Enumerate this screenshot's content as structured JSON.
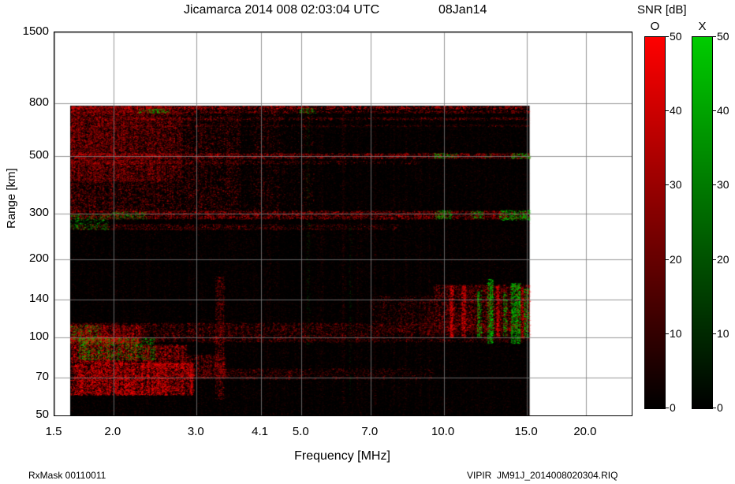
{
  "header": {
    "title": "Jicamarca 2014 008 02:03:04 UTC",
    "date": "08Jan14"
  },
  "footer": {
    "left": "RxMask 00110011",
    "right": "VIPIR  JM91J_2014008020304.RIQ"
  },
  "colorbar": {
    "title": "SNR [dB]",
    "o_label": "O",
    "x_label": "X",
    "min": 0,
    "max": 50,
    "ticks": [
      50,
      40,
      30,
      20,
      10,
      0
    ],
    "o_color": "#ff0000",
    "x_color": "#00cc00"
  },
  "chart_data": {
    "type": "heatmap",
    "title": "Jicamarca 2014 008 02:03:04 UTC 08Jan14",
    "xlabel": "Frequency [MHz]",
    "ylabel": "Range [km]",
    "x_scale": "log",
    "y_scale": "log",
    "x_range": [
      1.5,
      25
    ],
    "y_range": [
      50,
      1500
    ],
    "grid": true,
    "grid_color": "#7d7d7d",
    "x_ticks": [
      {
        "value": 1.5,
        "label": "1.5"
      },
      {
        "value": 2.0,
        "label": "2.0"
      },
      {
        "value": 3.0,
        "label": "3.0"
      },
      {
        "value": 4.1,
        "label": "4.1"
      },
      {
        "value": 5.0,
        "label": "5.0"
      },
      {
        "value": 7.0,
        "label": "7.0"
      },
      {
        "value": 10.0,
        "label": "10.0"
      },
      {
        "value": 15.0,
        "label": "15.0"
      },
      {
        "value": 20.0,
        "label": "20.0"
      }
    ],
    "y_ticks": [
      {
        "value": 1500,
        "label": "1500"
      },
      {
        "value": 800,
        "label": "800"
      },
      {
        "value": 500,
        "label": "500"
      },
      {
        "value": 300,
        "label": "300"
      },
      {
        "value": 200,
        "label": "200"
      },
      {
        "value": 140,
        "label": "140"
      },
      {
        "value": 100,
        "label": "100"
      },
      {
        "value": 70,
        "label": "70"
      },
      {
        "value": 50,
        "label": "50"
      }
    ],
    "snr_scale_db": [
      0,
      50
    ],
    "polarizations": {
      "O": "#ff0000",
      "X": "#00cc00"
    },
    "data_extent": {
      "freq": [
        1.62,
        15.2
      ],
      "range": [
        50,
        782
      ]
    },
    "background": {
      "bg_color": "#000000",
      "speckle_color": "#ff0000",
      "speckle_density": 0.3,
      "speckle_alpha": 0.1
    },
    "features": [
      {
        "name": "f-region-diffuse-echo",
        "type": "band",
        "f": [
          1.62,
          5.3
        ],
        "km": [
          305,
          780
        ],
        "color": "#ff0000",
        "alpha": 0.45,
        "density": 0.55,
        "fade": [
          1,
          0.12
        ]
      },
      {
        "name": "f-region-strong-left",
        "type": "band",
        "f": [
          1.62,
          2.8
        ],
        "km": [
          400,
          780
        ],
        "color": "#ff0000",
        "alpha": 0.5,
        "density": 0.6,
        "fade": [
          1,
          0.55
        ]
      },
      {
        "name": "gap-3p8mhz",
        "type": "dark",
        "f": [
          3.72,
          3.97
        ],
        "km": [
          305,
          780
        ],
        "alpha": 0.5
      },
      {
        "name": "gap-4p7mhz",
        "type": "dark",
        "f": [
          4.5,
          4.97
        ],
        "km": [
          140,
          780
        ],
        "alpha": 0.45
      },
      {
        "name": "band-775km",
        "type": "band",
        "f": [
          1.62,
          15.2
        ],
        "km": [
          760,
          782
        ],
        "color": "#ff0000",
        "alpha": 0.7,
        "density": 0.75,
        "fade": [
          1,
          0.7
        ]
      },
      {
        "name": "band-745km",
        "type": "band",
        "f": [
          1.62,
          15.2
        ],
        "km": [
          733,
          752
        ],
        "color": "#ff0000",
        "alpha": 0.5,
        "density": 0.55
      },
      {
        "name": "green-745km-2p4",
        "type": "band",
        "f": [
          2.25,
          2.62
        ],
        "km": [
          735,
          762
        ],
        "color": "#00cc00",
        "alpha": 0.8,
        "density": 0.5
      },
      {
        "name": "green-745km-5p1",
        "type": "band",
        "f": [
          4.95,
          5.35
        ],
        "km": [
          733,
          768
        ],
        "color": "#00cc00",
        "alpha": 0.8,
        "density": 0.5
      },
      {
        "name": "band-700km",
        "type": "band",
        "f": [
          1.62,
          15.2
        ],
        "km": [
          690,
          706
        ],
        "color": "#ff0000",
        "alpha": 0.42,
        "density": 0.5
      },
      {
        "name": "band-658km",
        "type": "band",
        "f": [
          1.62,
          15.2
        ],
        "km": [
          650,
          662
        ],
        "color": "#ff0000",
        "alpha": 0.3,
        "density": 0.4
      },
      {
        "name": "band-505km",
        "type": "band",
        "f": [
          1.62,
          15.2
        ],
        "km": [
          490,
          514
        ],
        "color": "#ff0000",
        "alpha": 0.62,
        "density": 0.65
      },
      {
        "name": "band-475km",
        "type": "band",
        "f": [
          1.62,
          9.0
        ],
        "km": [
          466,
          482
        ],
        "color": "#ff0000",
        "alpha": 0.42,
        "density": 0.5,
        "fade": [
          1,
          0.35
        ]
      },
      {
        "name": "green-505km-10",
        "type": "band",
        "f": [
          9.55,
          10.65
        ],
        "km": [
          492,
          514
        ],
        "color": "#00cc00",
        "alpha": 0.85,
        "density": 0.55
      },
      {
        "name": "green-505km-12p4",
        "type": "band",
        "f": [
          12.2,
          12.65
        ],
        "km": [
          494,
          510
        ],
        "color": "#00cc00",
        "alpha": 0.7,
        "density": 0.45
      },
      {
        "name": "green-505km-14p5",
        "type": "band",
        "f": [
          13.9,
          15.2
        ],
        "km": [
          490,
          514
        ],
        "color": "#00cc00",
        "alpha": 0.85,
        "density": 0.6
      },
      {
        "name": "band-298km",
        "type": "band",
        "f": [
          1.62,
          15.2
        ],
        "km": [
          286,
          308
        ],
        "color": "#ff0000",
        "alpha": 0.6,
        "density": 0.62
      },
      {
        "name": "band-268km",
        "type": "band",
        "f": [
          1.62,
          8.0
        ],
        "km": [
          260,
          274
        ],
        "color": "#ff0000",
        "alpha": 0.45,
        "density": 0.5,
        "fade": [
          1,
          0.45
        ]
      },
      {
        "name": "green-298km-2p1",
        "type": "band",
        "f": [
          1.95,
          2.35
        ],
        "km": [
          286,
          306
        ],
        "color": "#00cc00",
        "alpha": 0.7,
        "density": 0.4
      },
      {
        "name": "green-298km-10",
        "type": "band",
        "f": [
          9.6,
          10.4
        ],
        "km": [
          286,
          310
        ],
        "color": "#00cc00",
        "alpha": 0.9,
        "density": 0.65
      },
      {
        "name": "green-298km-11p7",
        "type": "band",
        "f": [
          11.4,
          12.1
        ],
        "km": [
          288,
          308
        ],
        "color": "#00cc00",
        "alpha": 0.8,
        "density": 0.5
      },
      {
        "name": "green-298km-14",
        "type": "band",
        "f": [
          13.1,
          15.2
        ],
        "km": [
          284,
          310
        ],
        "color": "#00cc00",
        "alpha": 0.9,
        "density": 0.65
      },
      {
        "name": "green-left-280km",
        "type": "band",
        "f": [
          1.62,
          1.95
        ],
        "km": [
          260,
          302
        ],
        "color": "#00cc00",
        "alpha": 0.7,
        "density": 0.32
      },
      {
        "name": "band-105km",
        "type": "band",
        "f": [
          1.62,
          15.2
        ],
        "km": [
          96,
          114
        ],
        "color": "#ff0000",
        "alpha": 0.45,
        "density": 0.5,
        "fade": [
          1,
          0.55
        ]
      },
      {
        "name": "band-105km-left",
        "type": "band",
        "f": [
          1.62,
          2.3
        ],
        "km": [
          95,
          112
        ],
        "color": "#ff0000",
        "alpha": 0.65,
        "density": 0.65
      },
      {
        "name": "e-region-block",
        "type": "band",
        "f": [
          1.62,
          2.95
        ],
        "km": [
          60,
          80
        ],
        "color": "#ff0000",
        "alpha": 0.85,
        "density": 0.95
      },
      {
        "name": "e-region-wedge-1",
        "type": "band",
        "f": [
          1.62,
          2.25
        ],
        "km": [
          80,
          101
        ],
        "color": "#ff0000",
        "alpha": 0.75,
        "density": 0.85
      },
      {
        "name": "e-region-wedge-2",
        "type": "band",
        "f": [
          2.25,
          2.85
        ],
        "km": [
          76,
          94
        ],
        "color": "#ff0000",
        "alpha": 0.62,
        "density": 0.7
      },
      {
        "name": "e-region-wedge-3",
        "type": "band",
        "f": [
          2.85,
          3.45
        ],
        "km": [
          70,
          86
        ],
        "color": "#ff0000",
        "alpha": 0.5,
        "density": 0.55
      },
      {
        "name": "green-e-region",
        "type": "band",
        "f": [
          1.68,
          2.45
        ],
        "km": [
          82,
          100
        ],
        "color": "#00cc00",
        "alpha": 0.75,
        "density": 0.35
      },
      {
        "name": "green-e-low",
        "type": "band",
        "f": [
          1.62,
          1.88
        ],
        "km": [
          95,
          112
        ],
        "color": "#00cc00",
        "alpha": 0.7,
        "density": 0.3
      },
      {
        "name": "line-72km",
        "type": "band",
        "f": [
          2.95,
          9.5
        ],
        "km": [
          69,
          76
        ],
        "color": "#ff0000",
        "alpha": 0.38,
        "density": 0.45,
        "fade": [
          1,
          0.35
        ]
      },
      {
        "name": "rfi-block-red",
        "type": "band",
        "f": [
          9.5,
          15.2
        ],
        "km": [
          105,
          160
        ],
        "color": "#ff0000",
        "alpha": 0.55,
        "density": 0.55
      },
      {
        "name": "rfi-block-red-ext",
        "type": "band",
        "f": [
          7.0,
          9.5
        ],
        "km": [
          105,
          145
        ],
        "color": "#ff0000",
        "alpha": 0.35,
        "density": 0.4,
        "fade": [
          0.5,
          1
        ]
      },
      {
        "name": "green-col-11p9",
        "type": "band",
        "f": [
          11.75,
          12.0
        ],
        "km": [
          100,
          152
        ],
        "color": "#00cc00",
        "alpha": 0.8,
        "density": 0.65
      },
      {
        "name": "green-col-12p5",
        "type": "band",
        "f": [
          12.35,
          12.7
        ],
        "km": [
          95,
          168
        ],
        "color": "#00cc00",
        "alpha": 0.95,
        "density": 0.85
      },
      {
        "name": "green-col-13p5",
        "type": "band",
        "f": [
          13.35,
          13.6
        ],
        "km": [
          100,
          150
        ],
        "color": "#00cc00",
        "alpha": 0.8,
        "density": 0.65
      },
      {
        "name": "green-col-14p2",
        "type": "band",
        "f": [
          13.85,
          14.5
        ],
        "km": [
          95,
          162
        ],
        "color": "#00cc00",
        "alpha": 0.95,
        "density": 0.85
      },
      {
        "name": "green-col-14p9",
        "type": "band",
        "f": [
          14.75,
          15.1
        ],
        "km": [
          100,
          155
        ],
        "color": "#00cc00",
        "alpha": 0.85,
        "density": 0.65
      },
      {
        "name": "red-col-10p4",
        "type": "band",
        "f": [
          10.3,
          10.5
        ],
        "km": [
          100,
          160
        ],
        "color": "#ff0000",
        "alpha": 0.8,
        "density": 0.8
      },
      {
        "name": "red-col-11",
        "type": "band",
        "f": [
          10.9,
          11.1
        ],
        "km": [
          100,
          158
        ],
        "color": "#ff0000",
        "alpha": 0.8,
        "density": 0.8
      },
      {
        "name": "red-col-13",
        "type": "band",
        "f": [
          12.9,
          13.1
        ],
        "km": [
          100,
          158
        ],
        "color": "#ff0000",
        "alpha": 0.8,
        "density": 0.8
      },
      {
        "name": "red-col-14p6",
        "type": "band",
        "f": [
          14.55,
          14.72
        ],
        "km": [
          100,
          158
        ],
        "color": "#ff0000",
        "alpha": 0.8,
        "density": 0.8
      },
      {
        "name": "rfi-line-3p3-low",
        "type": "band",
        "f": [
          3.28,
          3.42
        ],
        "km": [
          58,
          172
        ],
        "color": "#ff0000",
        "alpha": 0.45,
        "density": 0.5
      },
      {
        "name": "rfi-line-2p35",
        "type": "band",
        "f": [
          2.33,
          2.39
        ],
        "km": [
          55,
          780
        ],
        "color": "#ff0000",
        "alpha": 0.15,
        "density": 0.3
      },
      {
        "name": "rfi-line-4p25",
        "type": "band",
        "f": [
          4.22,
          4.29
        ],
        "km": [
          55,
          780
        ],
        "color": "#ff0000",
        "alpha": 0.15,
        "density": 0.3
      },
      {
        "name": "rfi-line-5p5",
        "type": "band",
        "f": [
          5.48,
          5.55
        ],
        "km": [
          55,
          780
        ],
        "color": "#ff0000",
        "alpha": 0.16,
        "density": 0.3
      },
      {
        "name": "rfi-line-6p1",
        "type": "band",
        "f": [
          6.08,
          6.15
        ],
        "km": [
          55,
          780
        ],
        "color": "#ff0000",
        "alpha": 0.15,
        "density": 0.3
      },
      {
        "name": "rfi-line-6p55",
        "type": "band",
        "f": [
          6.52,
          6.59
        ],
        "km": [
          55,
          780
        ],
        "color": "#ff0000",
        "alpha": 0.14,
        "density": 0.3
      },
      {
        "name": "rfi-line-7p15",
        "type": "band",
        "f": [
          7.12,
          7.19
        ],
        "km": [
          55,
          780
        ],
        "color": "#ff0000",
        "alpha": 0.15,
        "density": 0.3
      },
      {
        "name": "rfi-line-7p8",
        "type": "band",
        "f": [
          7.78,
          7.85
        ],
        "km": [
          55,
          780
        ],
        "color": "#ff0000",
        "alpha": 0.14,
        "density": 0.3
      },
      {
        "name": "rfi-line-8p3",
        "type": "band",
        "f": [
          8.28,
          8.35
        ],
        "km": [
          55,
          780
        ],
        "color": "#ff0000",
        "alpha": 0.14,
        "density": 0.3
      },
      {
        "name": "rfi-line-8p9",
        "type": "band",
        "f": [
          8.88,
          8.95
        ],
        "km": [
          55,
          780
        ],
        "color": "#ff0000",
        "alpha": 0.15,
        "density": 0.3
      },
      {
        "name": "rfi-line-9p3",
        "type": "band",
        "f": [
          9.28,
          9.35
        ],
        "km": [
          55,
          780
        ],
        "color": "#ff0000",
        "alpha": 0.15,
        "density": 0.3
      },
      {
        "name": "green-line-5p15",
        "type": "band",
        "f": [
          5.12,
          5.2
        ],
        "km": [
          90,
          780
        ],
        "color": "#00cc00",
        "alpha": 0.22,
        "density": 0.25
      },
      {
        "name": "green-line-6p3",
        "type": "band",
        "f": [
          6.3,
          6.38
        ],
        "km": [
          60,
          300
        ],
        "color": "#00cc00",
        "alpha": 0.18,
        "density": 0.2
      }
    ]
  }
}
